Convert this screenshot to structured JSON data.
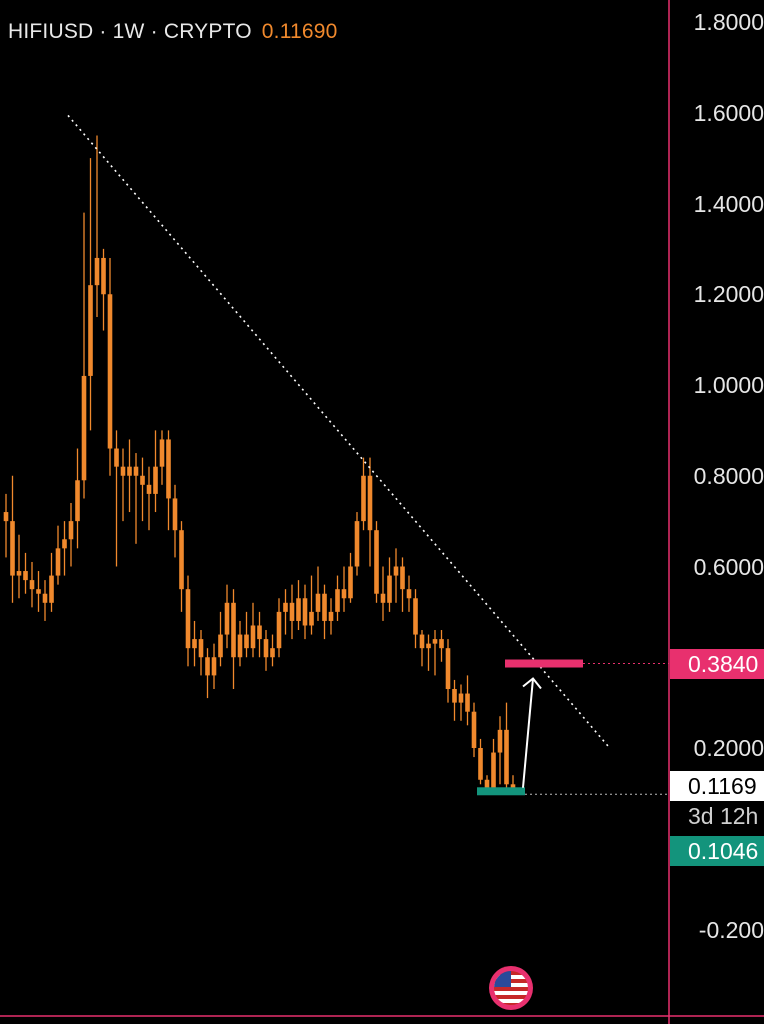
{
  "header": {
    "symbol_line": "HIFIUSD · 1W · CRYPTO",
    "last_price": "0.11690"
  },
  "colors": {
    "candle": "#f0892d",
    "trendline": "#ffffff",
    "target_zone": "#e8306e",
    "support_zone": "#13947c",
    "axis_line": "#e8306e"
  },
  "chart_data": {
    "type": "candlestick",
    "timeframe": "1W",
    "y_axis": {
      "ticks": [
        "1.8000",
        "1.6000",
        "1.4000",
        "1.2000",
        "1.0000",
        "0.8000",
        "0.6000",
        "0.2000",
        "-0.200"
      ],
      "tick_values": [
        1.8,
        1.6,
        1.4,
        1.2,
        1.0,
        0.8,
        0.6,
        0.2,
        -0.2
      ],
      "range": [
        -0.25,
        1.85
      ]
    },
    "price_tags": {
      "target": "0.3840",
      "current": "0.1169",
      "countdown": "3d 12h",
      "support": "0.1046"
    },
    "target_level": 0.384,
    "support_level": 0.1046,
    "current_price": 0.1169,
    "trendline": {
      "from": 1.55,
      "to": 0.2
    },
    "annotations": [
      "descending trendline",
      "target zone 0.3840",
      "support zone 0.1046",
      "upward arrow to target"
    ],
    "candles": [
      [
        0.72,
        0.7,
        0.76,
        0.62
      ],
      [
        0.7,
        0.58,
        0.8,
        0.52
      ],
      [
        0.58,
        0.59,
        0.67,
        0.53
      ],
      [
        0.59,
        0.57,
        0.63,
        0.54
      ],
      [
        0.57,
        0.55,
        0.61,
        0.51
      ],
      [
        0.55,
        0.54,
        0.59,
        0.5
      ],
      [
        0.54,
        0.52,
        0.57,
        0.48
      ],
      [
        0.52,
        0.58,
        0.63,
        0.5
      ],
      [
        0.58,
        0.64,
        0.69,
        0.56
      ],
      [
        0.64,
        0.66,
        0.7,
        0.58
      ],
      [
        0.66,
        0.7,
        0.74,
        0.6
      ],
      [
        0.7,
        0.79,
        0.86,
        0.64
      ],
      [
        0.79,
        1.02,
        1.38,
        0.75
      ],
      [
        1.02,
        1.22,
        1.5,
        0.9
      ],
      [
        1.22,
        1.28,
        1.55,
        1.15
      ],
      [
        1.28,
        1.2,
        1.3,
        1.12
      ],
      [
        1.2,
        0.86,
        1.28,
        0.8
      ],
      [
        0.86,
        0.82,
        0.9,
        0.6
      ],
      [
        0.82,
        0.8,
        0.86,
        0.7
      ],
      [
        0.8,
        0.82,
        0.88,
        0.72
      ],
      [
        0.82,
        0.8,
        0.85,
        0.65
      ],
      [
        0.8,
        0.78,
        0.84,
        0.7
      ],
      [
        0.78,
        0.76,
        0.82,
        0.68
      ],
      [
        0.76,
        0.82,
        0.9,
        0.72
      ],
      [
        0.82,
        0.88,
        0.9,
        0.78
      ],
      [
        0.88,
        0.75,
        0.9,
        0.68
      ],
      [
        0.75,
        0.68,
        0.78,
        0.62
      ],
      [
        0.68,
        0.55,
        0.7,
        0.5
      ],
      [
        0.55,
        0.42,
        0.58,
        0.38
      ],
      [
        0.42,
        0.44,
        0.48,
        0.38
      ],
      [
        0.44,
        0.4,
        0.46,
        0.36
      ],
      [
        0.4,
        0.36,
        0.42,
        0.31
      ],
      [
        0.36,
        0.4,
        0.43,
        0.33
      ],
      [
        0.4,
        0.45,
        0.5,
        0.38
      ],
      [
        0.45,
        0.52,
        0.56,
        0.42
      ],
      [
        0.52,
        0.4,
        0.55,
        0.33
      ],
      [
        0.4,
        0.45,
        0.48,
        0.38
      ],
      [
        0.45,
        0.42,
        0.5,
        0.4
      ],
      [
        0.42,
        0.47,
        0.52,
        0.4
      ],
      [
        0.47,
        0.44,
        0.5,
        0.4
      ],
      [
        0.44,
        0.4,
        0.46,
        0.37
      ],
      [
        0.4,
        0.42,
        0.45,
        0.38
      ],
      [
        0.42,
        0.5,
        0.53,
        0.4
      ],
      [
        0.5,
        0.52,
        0.55,
        0.45
      ],
      [
        0.52,
        0.48,
        0.56,
        0.44
      ],
      [
        0.48,
        0.53,
        0.57,
        0.46
      ],
      [
        0.53,
        0.47,
        0.56,
        0.44
      ],
      [
        0.47,
        0.5,
        0.58,
        0.45
      ],
      [
        0.5,
        0.54,
        0.6,
        0.48
      ],
      [
        0.54,
        0.48,
        0.56,
        0.44
      ],
      [
        0.48,
        0.5,
        0.53,
        0.45
      ],
      [
        0.5,
        0.55,
        0.58,
        0.48
      ],
      [
        0.55,
        0.53,
        0.6,
        0.5
      ],
      [
        0.53,
        0.6,
        0.63,
        0.52
      ],
      [
        0.6,
        0.7,
        0.72,
        0.58
      ],
      [
        0.7,
        0.8,
        0.84,
        0.68
      ],
      [
        0.8,
        0.68,
        0.84,
        0.6
      ],
      [
        0.68,
        0.54,
        0.7,
        0.52
      ],
      [
        0.54,
        0.52,
        0.6,
        0.48
      ],
      [
        0.52,
        0.58,
        0.62,
        0.5
      ],
      [
        0.58,
        0.6,
        0.64,
        0.52
      ],
      [
        0.6,
        0.55,
        0.62,
        0.5
      ],
      [
        0.55,
        0.53,
        0.58,
        0.5
      ],
      [
        0.53,
        0.45,
        0.55,
        0.42
      ],
      [
        0.45,
        0.42,
        0.46,
        0.38
      ],
      [
        0.42,
        0.43,
        0.45,
        0.37
      ],
      [
        0.43,
        0.44,
        0.46,
        0.36
      ],
      [
        0.44,
        0.42,
        0.46,
        0.39
      ],
      [
        0.42,
        0.33,
        0.44,
        0.3
      ],
      [
        0.33,
        0.3,
        0.35,
        0.26
      ],
      [
        0.3,
        0.32,
        0.34,
        0.26
      ],
      [
        0.32,
        0.28,
        0.36,
        0.25
      ],
      [
        0.28,
        0.2,
        0.3,
        0.18
      ],
      [
        0.2,
        0.13,
        0.22,
        0.12
      ],
      [
        0.13,
        0.11,
        0.14,
        0.1
      ],
      [
        0.11,
        0.19,
        0.22,
        0.1
      ],
      [
        0.19,
        0.24,
        0.27,
        0.12
      ],
      [
        0.24,
        0.12,
        0.3,
        0.11
      ],
      [
        0.12,
        0.11,
        0.14,
        0.1
      ]
    ]
  }
}
